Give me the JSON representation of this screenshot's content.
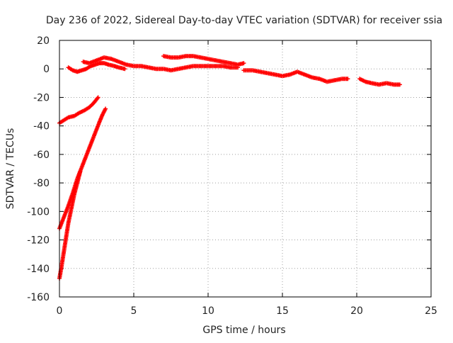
{
  "chart_data": {
    "type": "scatter",
    "title": "Day 236 of 2022, Sidereal Day-to-day VTEC variation (SDTVAR) for receiver ssia",
    "xlabel": "GPS time / hours",
    "ylabel": "SDTVAR / TECUs",
    "xlim": [
      0,
      25
    ],
    "ylim": [
      -160,
      20
    ],
    "xticks": [
      0,
      5,
      10,
      15,
      20,
      25
    ],
    "yticks": [
      -160,
      -140,
      -120,
      -100,
      -80,
      -60,
      -40,
      -20,
      0,
      20
    ],
    "grid": true,
    "marker": "+",
    "color": "#ff0000",
    "series": [
      {
        "x": [
          0.0,
          0.3,
          0.6,
          1.0,
          1.3,
          1.7,
          2.0,
          2.3,
          2.6
        ],
        "y": [
          -38,
          -36,
          -34,
          -33,
          -31,
          -29,
          -27,
          -24,
          -20
        ]
      },
      {
        "x": [
          0.0,
          0.3,
          0.6,
          0.9,
          1.2,
          1.5,
          1.8,
          2.1,
          2.4,
          2.7,
          2.9,
          3.1
        ],
        "y": [
          -112,
          -104,
          -96,
          -87,
          -77,
          -69,
          -61,
          -53,
          -45,
          -37,
          -32,
          -28
        ]
      },
      {
        "x": [
          0.0,
          0.15,
          0.3,
          0.45,
          0.6,
          0.8,
          1.0,
          1.2,
          1.4
        ],
        "y": [
          -147,
          -138,
          -128,
          -118,
          -108,
          -98,
          -88,
          -80,
          -72
        ]
      },
      {
        "x": [
          0.6,
          0.9,
          1.2,
          1.5,
          1.8,
          2.1,
          2.4,
          2.7,
          3.0,
          3.3,
          3.7,
          4.0,
          4.4
        ],
        "y": [
          1,
          -1,
          -2,
          -1,
          0,
          2,
          3,
          4,
          4,
          3,
          2,
          1,
          0
        ]
      },
      {
        "x": [
          1.6,
          2.0,
          2.5,
          3.0,
          3.5,
          4.0,
          4.5,
          5.0,
          5.5,
          6.0,
          6.5,
          7.0,
          7.5,
          8.0,
          8.5,
          9.0,
          9.5,
          10.0,
          10.5,
          11.0,
          11.5,
          12.0
        ],
        "y": [
          5,
          4,
          6,
          8,
          7,
          5,
          3,
          2,
          2,
          1,
          0,
          0,
          -1,
          0,
          1,
          2,
          2,
          2,
          2,
          2,
          1,
          1
        ]
      },
      {
        "x": [
          7.0,
          7.5,
          8.0,
          8.5,
          9.0,
          9.5,
          10.0,
          10.5,
          11.0,
          11.5,
          12.0,
          12.4
        ],
        "y": [
          9,
          8,
          8,
          9,
          9,
          8,
          7,
          6,
          5,
          4,
          3,
          4
        ]
      },
      {
        "x": [
          12.4,
          13.0,
          13.5,
          14.0,
          14.5,
          15.0,
          15.5,
          16.0,
          16.5,
          17.0,
          17.5,
          18.0,
          18.5,
          19.0,
          19.4
        ],
        "y": [
          -1,
          -1,
          -2,
          -3,
          -4,
          -5,
          -4,
          -2,
          -4,
          -6,
          -7,
          -9,
          -8,
          -7,
          -7
        ]
      },
      {
        "x": [
          20.2,
          20.6,
          21.0,
          21.5,
          22.0,
          22.5,
          22.9
        ],
        "y": [
          -7,
          -9,
          -10,
          -11,
          -10,
          -11,
          -11
        ]
      }
    ]
  }
}
